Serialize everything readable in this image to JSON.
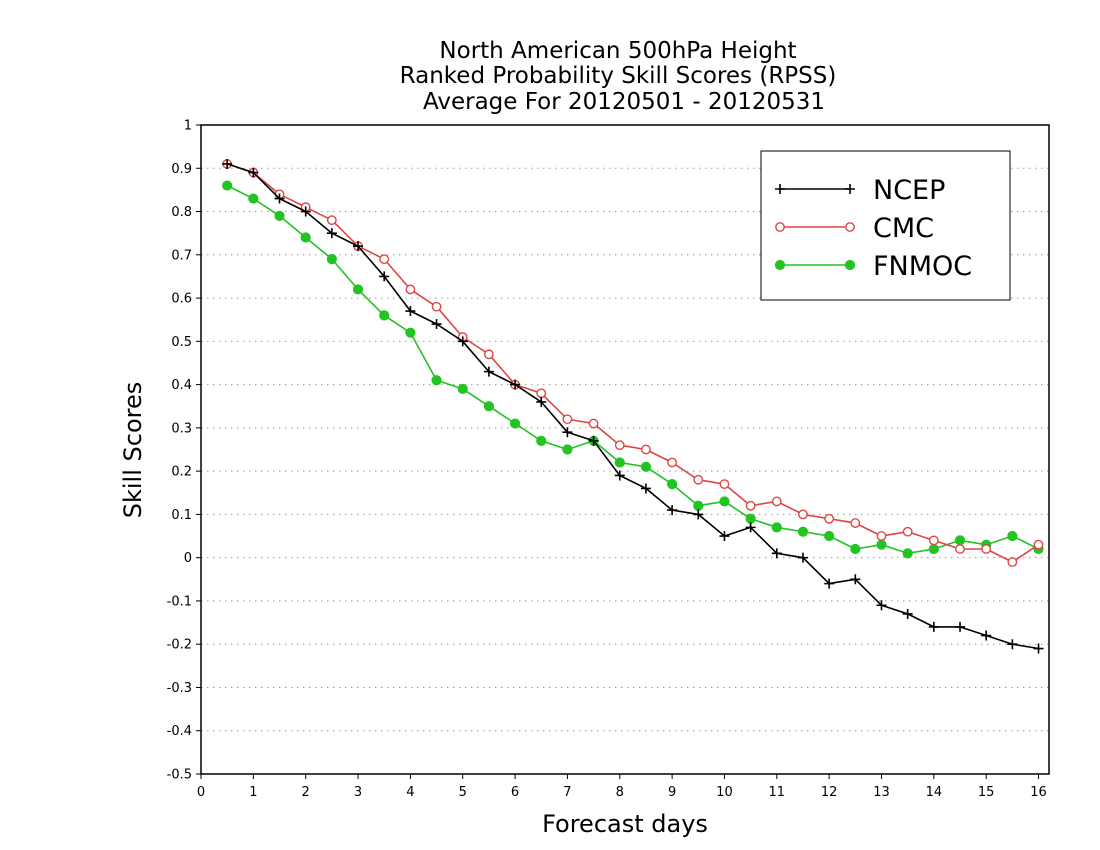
{
  "chart_data": {
    "type": "line",
    "title_lines": [
      "North American 500hPa Height",
      "Ranked Probability Skill Scores (RPSS)",
      "Average For 20120501 - 20120531"
    ],
    "xlabel": "Forecast days",
    "ylabel": "Skill Scores",
    "xlim": [
      0,
      16.2
    ],
    "ylim": [
      -0.5,
      1
    ],
    "xticks": [
      "0",
      "1",
      "2",
      "3",
      "4",
      "5",
      "6",
      "7",
      "8",
      "9",
      "10",
      "11",
      "12",
      "13",
      "14",
      "15",
      "16"
    ],
    "yticks": [
      "1",
      "0.9",
      "0.8",
      "0.7",
      "0.6",
      "0.5",
      "0.4",
      "0.3",
      "0.2",
      "0.1",
      "0",
      "-0.1",
      "-0.2",
      "-0.3",
      "-0.4",
      "-0.5"
    ],
    "grid": "horizontal dotted",
    "legend_position": "top-right",
    "x": [
      0.5,
      1,
      1.5,
      2,
      2.5,
      3,
      3.5,
      4,
      4.5,
      5,
      5.5,
      6,
      6.5,
      7,
      7.5,
      8,
      8.5,
      9,
      9.5,
      10,
      10.5,
      11,
      11.5,
      12,
      12.5,
      13,
      13.5,
      14,
      14.5,
      15,
      15.5,
      16
    ],
    "series": [
      {
        "name": "NCEP",
        "color": "#000000",
        "marker": "plus",
        "values": [
          0.91,
          0.89,
          0.83,
          0.8,
          0.75,
          0.72,
          0.65,
          0.57,
          0.54,
          0.5,
          0.43,
          0.4,
          0.36,
          0.29,
          0.27,
          0.19,
          0.16,
          0.11,
          0.1,
          0.05,
          0.07,
          0.01,
          0.0,
          -0.06,
          -0.05,
          -0.11,
          -0.13,
          -0.16,
          -0.16,
          -0.18,
          -0.2,
          -0.21
        ]
      },
      {
        "name": "CMC",
        "color": "#e04545",
        "marker": "open-circle",
        "values": [
          0.91,
          0.89,
          0.84,
          0.81,
          0.78,
          0.72,
          0.69,
          0.62,
          0.58,
          0.51,
          0.47,
          0.4,
          0.38,
          0.32,
          0.31,
          0.26,
          0.25,
          0.22,
          0.18,
          0.17,
          0.12,
          0.13,
          0.1,
          0.09,
          0.08,
          0.05,
          0.06,
          0.04,
          0.02,
          0.02,
          -0.01,
          0.03
        ]
      },
      {
        "name": "FNMOC",
        "color": "#22c322",
        "marker": "filled-circle",
        "values": [
          0.86,
          0.83,
          0.79,
          0.74,
          0.69,
          0.62,
          0.56,
          0.52,
          0.41,
          0.39,
          0.35,
          0.31,
          0.27,
          0.25,
          0.27,
          0.22,
          0.21,
          0.17,
          0.12,
          0.13,
          0.09,
          0.07,
          0.06,
          0.05,
          0.02,
          0.03,
          0.01,
          0.02,
          0.04,
          0.03,
          0.05,
          0.02
        ]
      }
    ]
  }
}
